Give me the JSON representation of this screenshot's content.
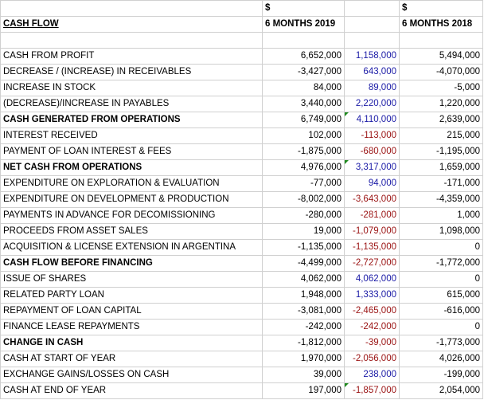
{
  "header": {
    "currency_2019": "$",
    "currency_2018": "$",
    "title": "CASH FLOW",
    "period_2019": "6 MONTHS 2019",
    "period_2018": "6 MONTHS 2018"
  },
  "rows": [
    {
      "label": "CASH FROM PROFIT",
      "v2019": "6,652,000",
      "diff": "1,158,000",
      "diff_sign": "pos",
      "v2018": "5,494,000",
      "bold": false,
      "flag": false
    },
    {
      "label": "DECREASE / (INCREASE) IN RECEIVABLES",
      "v2019": "-3,427,000",
      "diff": "643,000",
      "diff_sign": "pos",
      "v2018": "-4,070,000",
      "bold": false,
      "flag": false
    },
    {
      "label": "INCREASE IN STOCK",
      "v2019": "84,000",
      "diff": "89,000",
      "diff_sign": "pos",
      "v2018": "-5,000",
      "bold": false,
      "flag": false
    },
    {
      "label": "(DECREASE)/INCREASE  IN PAYABLES",
      "v2019": "3,440,000",
      "diff": "2,220,000",
      "diff_sign": "pos",
      "v2018": "1,220,000",
      "bold": false,
      "flag": false
    },
    {
      "label": "CASH GENERATED FROM OPERATIONS",
      "v2019": "6,749,000",
      "diff": "4,110,000",
      "diff_sign": "pos",
      "v2018": "2,639,000",
      "bold": true,
      "flag": true
    },
    {
      "label": "INTEREST RECEIVED",
      "v2019": "102,000",
      "diff": "-113,000",
      "diff_sign": "neg",
      "v2018": "215,000",
      "bold": false,
      "flag": false
    },
    {
      "label": "PAYMENT OF LOAN INTEREST & FEES",
      "v2019": "-1,875,000",
      "diff": "-680,000",
      "diff_sign": "neg",
      "v2018": "-1,195,000",
      "bold": false,
      "flag": false
    },
    {
      "label": "NET CASH FROM OPERATIONS",
      "v2019": "4,976,000",
      "diff": "3,317,000",
      "diff_sign": "pos",
      "v2018": "1,659,000",
      "bold": true,
      "flag": true
    },
    {
      "label": "EXPENDITURE ON EXPLORATION & EVALUATION",
      "v2019": "-77,000",
      "diff": "94,000",
      "diff_sign": "pos",
      "v2018": "-171,000",
      "bold": false,
      "flag": false
    },
    {
      "label": "EXPENDITURE ON DEVELOPMENT & PRODUCTION",
      "v2019": "-8,002,000",
      "diff": "-3,643,000",
      "diff_sign": "neg",
      "v2018": "-4,359,000",
      "bold": false,
      "flag": false
    },
    {
      "label": "PAYMENTS IN ADVANCE FOR DECOMISSIONING",
      "v2019": "-280,000",
      "diff": "-281,000",
      "diff_sign": "neg",
      "v2018": "1,000",
      "bold": false,
      "flag": false
    },
    {
      "label": "PROCEEDS FROM ASSET SALES",
      "v2019": "19,000",
      "diff": "-1,079,000",
      "diff_sign": "neg",
      "v2018": "1,098,000",
      "bold": false,
      "flag": false
    },
    {
      "label": "ACQUISITION & LICENSE EXTENSION IN ARGENTINA",
      "v2019": "-1,135,000",
      "diff": "-1,135,000",
      "diff_sign": "neg",
      "v2018": "0",
      "bold": false,
      "flag": false
    },
    {
      "label": "CASH FLOW BEFORE FINANCING",
      "v2019": "-4,499,000",
      "diff": "-2,727,000",
      "diff_sign": "neg",
      "v2018": "-1,772,000",
      "bold": true,
      "flag": false
    },
    {
      "label": "ISSUE OF SHARES",
      "v2019": "4,062,000",
      "diff": "4,062,000",
      "diff_sign": "pos",
      "v2018": "0",
      "bold": false,
      "flag": false
    },
    {
      "label": "RELATED PARTY LOAN",
      "v2019": "1,948,000",
      "diff": "1,333,000",
      "diff_sign": "pos",
      "v2018": "615,000",
      "bold": false,
      "flag": false
    },
    {
      "label": "REPAYMENT OF LOAN CAPITAL",
      "v2019": "-3,081,000",
      "diff": "-2,465,000",
      "diff_sign": "neg",
      "v2018": "-616,000",
      "bold": false,
      "flag": false
    },
    {
      "label": "FINANCE LEASE REPAYMENTS",
      "v2019": "-242,000",
      "diff": "-242,000",
      "diff_sign": "neg",
      "v2018": "0",
      "bold": false,
      "flag": false
    },
    {
      "label": "CHANGE IN CASH",
      "v2019": "-1,812,000",
      "diff": "-39,000",
      "diff_sign": "neg",
      "v2018": "-1,773,000",
      "bold": true,
      "flag": false
    },
    {
      "label": "CASH AT START OF YEAR",
      "v2019": "1,970,000",
      "diff": "-2,056,000",
      "diff_sign": "neg",
      "v2018": "4,026,000",
      "bold": false,
      "flag": false
    },
    {
      "label": "EXCHANGE GAINS/LOSSES ON CASH",
      "v2019": "39,000",
      "diff": "238,000",
      "diff_sign": "pos",
      "v2018": "-199,000",
      "bold": false,
      "flag": false
    },
    {
      "label": "CASH AT END OF YEAR",
      "v2019": "197,000",
      "diff": "-1,857,000",
      "diff_sign": "neg",
      "v2018": "2,054,000",
      "bold": false,
      "flag": true
    }
  ],
  "colors": {
    "positive_diff": "#1a1aa6",
    "negative_diff": "#9a1212",
    "gridline": "#d0d0d0",
    "comment_flag": "#1f8a1f"
  }
}
